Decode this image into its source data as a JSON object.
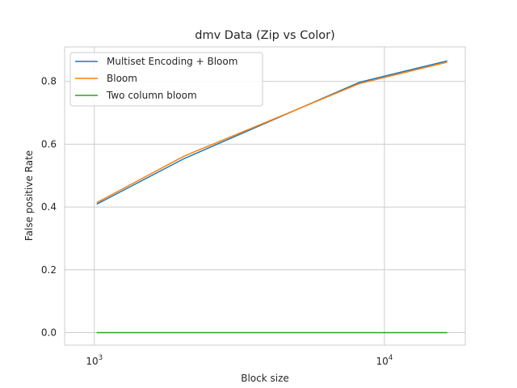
{
  "chart_data": {
    "type": "line",
    "title": "dmv Data (Zip vs Color)",
    "xlabel": "Block size",
    "ylabel": "False positive Rate",
    "xscale": "log",
    "xlim": [
      790,
      19000
    ],
    "ylim": [
      -0.04,
      0.91
    ],
    "x_ticks": [
      {
        "value": 1000,
        "base": "10",
        "exp": "3"
      },
      {
        "value": 10000,
        "base": "10",
        "exp": "4"
      }
    ],
    "y_ticks": [
      {
        "value": 0.0,
        "label": "0.0"
      },
      {
        "value": 0.2,
        "label": "0.2"
      },
      {
        "value": 0.4,
        "label": "0.4"
      },
      {
        "value": 0.6,
        "label": "0.6"
      },
      {
        "value": 0.8,
        "label": "0.8"
      }
    ],
    "grid": true,
    "legend_position": "top-left",
    "series": [
      {
        "name": "Multiset Encoding + Bloom",
        "color": "#1f77b4",
        "x": [
          1024,
          2048,
          8192,
          16384
        ],
        "y": [
          0.41,
          0.555,
          0.797,
          0.865
        ]
      },
      {
        "name": "Bloom",
        "color": "#ff7f0e",
        "x": [
          1024,
          2048,
          8192,
          16384
        ],
        "y": [
          0.415,
          0.563,
          0.793,
          0.861
        ]
      },
      {
        "name": "Two column bloom",
        "color": "#2ca02c",
        "x": [
          1024,
          2048,
          8192,
          16384
        ],
        "y": [
          0.0,
          0.0,
          0.0,
          0.0
        ]
      }
    ]
  }
}
